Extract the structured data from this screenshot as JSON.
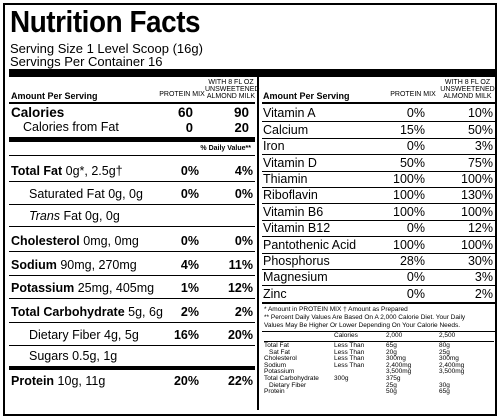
{
  "title": "Nutrition Facts",
  "serving_size": "Serving Size 1 Level Scoop (16g)",
  "servings_per_container": "Servings Per Container 16",
  "headers": {
    "amount_per_serving": "Amount Per Serving",
    "protein_mix": "PROTEIN MIX",
    "with_milk_1": "WITH 8 FL OZ",
    "with_milk_2": "UNSWEETENED",
    "with_milk_3": "ALMOND MILK",
    "daily_value": "% Daily Value**"
  },
  "calories": {
    "label": "Calories",
    "v1": "60",
    "v2": "90"
  },
  "calories_fat": {
    "label": "Calories from Fat",
    "v1": "0",
    "v2": "20"
  },
  "nutrients": [
    {
      "label": "Total Fat",
      "amount": " 0g*, 2.5g†",
      "v1": "0%",
      "v2": "4%"
    },
    {
      "label": "Saturated Fat 0g, 0g",
      "amount": "",
      "v1": "0%",
      "v2": "0%"
    },
    {
      "label": "Trans",
      "amount": " Fat 0g, 0g",
      "v1": "",
      "v2": ""
    },
    {
      "label": "Cholesterol",
      "amount": " 0mg, 0mg",
      "v1": "0%",
      "v2": "0%"
    },
    {
      "label": "Sodium",
      "amount": " 90mg, 270mg",
      "v1": "4%",
      "v2": "11%"
    },
    {
      "label": "Potassium",
      "amount": " 25mg, 405mg",
      "v1": "1%",
      "v2": "12%"
    },
    {
      "label": "Total Carbohydrate",
      "amount": " 5g, 6g",
      "v1": "2%",
      "v2": "2%"
    },
    {
      "label": "Dietary Fiber 4g, 5g",
      "amount": "",
      "v1": "16%",
      "v2": "20%"
    },
    {
      "label": "Sugars 0.5g, 1g",
      "amount": "",
      "v1": "",
      "v2": ""
    },
    {
      "label": "Protein",
      "amount": " 10g, 11g",
      "v1": "20%",
      "v2": "22%"
    }
  ],
  "vitamins": [
    {
      "label": "Vitamin A",
      "v1": "0%",
      "v2": "10%"
    },
    {
      "label": "Calcium",
      "v1": "15%",
      "v2": "50%"
    },
    {
      "label": "Iron",
      "v1": "0%",
      "v2": "3%"
    },
    {
      "label": "Vitamin D",
      "v1": "50%",
      "v2": "75%"
    },
    {
      "label": "Thiamin",
      "v1": "100%",
      "v2": "100%"
    },
    {
      "label": "Riboflavin",
      "v1": "100%",
      "v2": "130%"
    },
    {
      "label": "Vitamin B6",
      "v1": "100%",
      "v2": "100%"
    },
    {
      "label": "Vitamin B12",
      "v1": "0%",
      "v2": "12%"
    },
    {
      "label": "Pantothenic Acid",
      "v1": "100%",
      "v2": "100%"
    },
    {
      "label": "Phosphorus",
      "v1": "28%",
      "v2": "30%"
    },
    {
      "label": "Magnesium",
      "v1": "0%",
      "v2": "3%"
    },
    {
      "label": "Zinc",
      "v1": "0%",
      "v2": "2%"
    }
  ],
  "footnote_1": "* Amount in PROTEIN MIX  † Amount as Prepared",
  "footnote_2": "** Percent Daily Values Are Based On A 2,000 Calorie Diet. Your Daily",
  "footnote_3": "Values May Be Higher Or Lower Depending On Your Calorie Needs.",
  "dv_table": {
    "header": [
      "Calories",
      "2,000",
      "2,500"
    ],
    "rows": [
      [
        "Total Fat",
        "Less Than",
        "65g",
        "80g"
      ],
      [
        "Sat Fat",
        "Less Than",
        "20g",
        "25g"
      ],
      [
        "Cholesterol",
        "Less Than",
        "300mg",
        "300mg"
      ],
      [
        "Sodium",
        "Less Than",
        "2,400mg",
        "2,400mg"
      ],
      [
        "Potassium",
        "",
        "3,500mg",
        "3,500mg"
      ],
      [
        "Total Carbohydrate",
        "300g",
        "375g",
        ""
      ],
      [
        "Dietary Fiber",
        "",
        "25g",
        "30g"
      ],
      [
        "Protein",
        "",
        "50g",
        "65g"
      ]
    ]
  }
}
